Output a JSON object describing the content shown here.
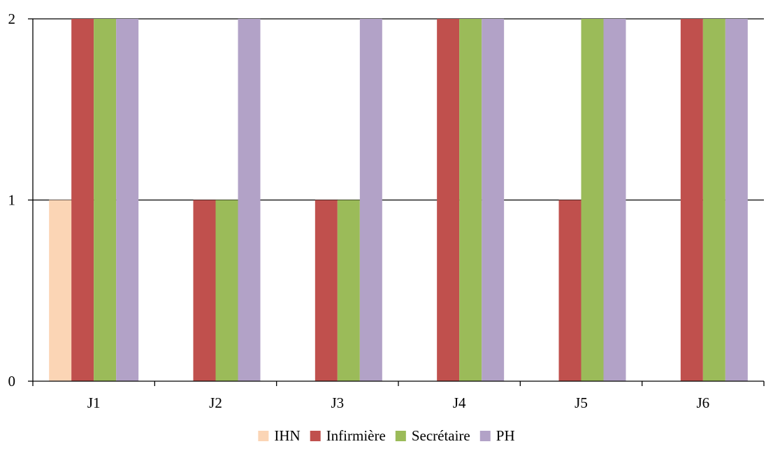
{
  "chart_data": {
    "type": "bar",
    "categories": [
      "J1",
      "J2",
      "J3",
      "J4",
      "J5",
      "J6"
    ],
    "series": [
      {
        "name": "IHN",
        "color": "#FBD5B5",
        "values": [
          1,
          0,
          0,
          0,
          0,
          0
        ]
      },
      {
        "name": "Infirmière",
        "color": "#C0504D",
        "values": [
          2,
          1,
          1,
          2,
          1,
          2
        ]
      },
      {
        "name": "Secrétaire",
        "color": "#9BBB59",
        "values": [
          2,
          1,
          1,
          2,
          2,
          2
        ]
      },
      {
        "name": "PH",
        "color": "#B2A2C7",
        "values": [
          2,
          2,
          2,
          2,
          2,
          2
        ]
      }
    ],
    "title": "",
    "xlabel": "",
    "ylabel": "",
    "ylim": [
      0,
      2
    ],
    "yticks": [
      0,
      1,
      2
    ],
    "grid": true,
    "legend_position": "bottom"
  }
}
